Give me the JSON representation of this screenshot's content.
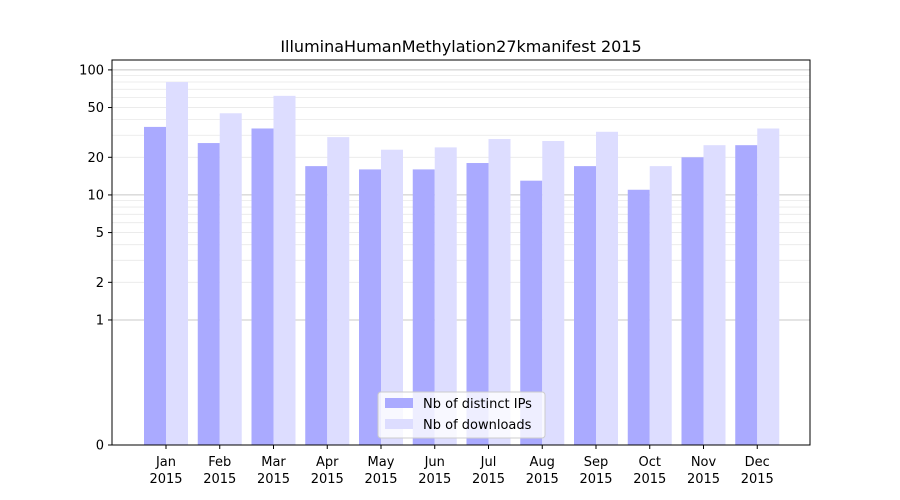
{
  "chart_data": {
    "type": "bar",
    "title": "IlluminaHumanMethylation27kmanifest 2015",
    "xlabel": "",
    "ylabel": "",
    "y_scale": "symlog",
    "ylim": [
      0,
      120
    ],
    "yticks": [
      0,
      1,
      2,
      5,
      10,
      20,
      50,
      100
    ],
    "ytick_labels": [
      "0",
      "1",
      "2",
      "5",
      "10",
      "20",
      "50",
      "100"
    ],
    "categories": [
      "Jan\n2015",
      "Feb\n2015",
      "Mar\n2015",
      "Apr\n2015",
      "May\n2015",
      "Jun\n2015",
      "Jul\n2015",
      "Aug\n2015",
      "Sep\n2015",
      "Oct\n2015",
      "Nov\n2015",
      "Dec\n2015"
    ],
    "series": [
      {
        "name": "Nb of distinct IPs",
        "color": "#aaaaff",
        "values": [
          35,
          26,
          34,
          17,
          16,
          16,
          18,
          13,
          17,
          11,
          20,
          25
        ]
      },
      {
        "name": "Nb of downloads",
        "color": "#ddddff",
        "values": [
          80,
          45,
          62,
          29,
          23,
          24,
          28,
          27,
          32,
          17,
          25,
          34
        ]
      }
    ],
    "grid": true,
    "legend": "lower-center"
  }
}
